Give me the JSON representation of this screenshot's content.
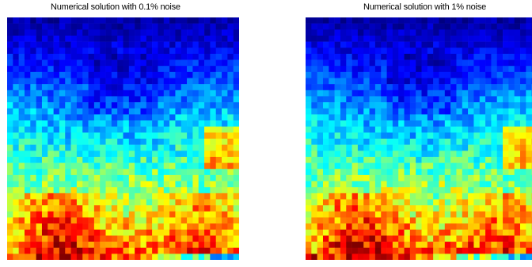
{
  "chart_data": [
    {
      "type": "heatmap",
      "title": "Numerical solution with 0.1% noise",
      "xlabel": "",
      "ylabel": "",
      "grid": false,
      "grid_size": [
        40,
        40
      ],
      "colormap": "jet",
      "noise_seed": 7
    },
    {
      "type": "heatmap",
      "title": "Numerical solution with 1% noise",
      "xlabel": "",
      "ylabel": "",
      "grid": false,
      "grid_size": [
        40,
        40
      ],
      "colormap": "jet",
      "noise_seed": 11
    }
  ]
}
